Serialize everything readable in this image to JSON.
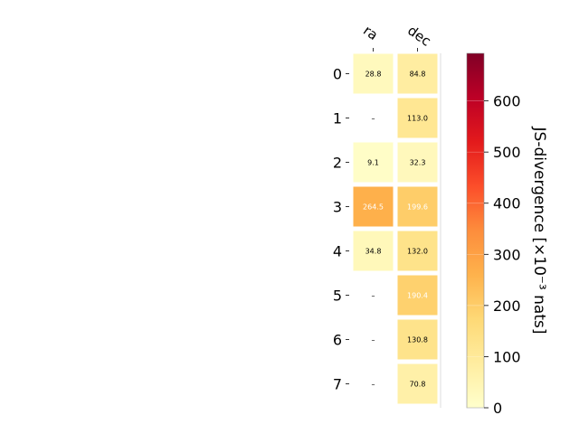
{
  "chart_data": {
    "type": "heatmap",
    "columns": [
      "ra",
      "dec"
    ],
    "rows": [
      "0",
      "1",
      "2",
      "3",
      "4",
      "5",
      "6",
      "7"
    ],
    "values": [
      [
        28.8,
        84.8
      ],
      [
        null,
        113.0
      ],
      [
        9.1,
        32.3
      ],
      [
        264.5,
        199.6
      ],
      [
        34.8,
        132.0
      ],
      [
        null,
        190.4
      ],
      [
        null,
        130.8
      ],
      [
        null,
        70.8
      ]
    ],
    "cell_labels": [
      [
        "28.8",
        "84.8"
      ],
      [
        "–",
        "113.0"
      ],
      [
        "9.1",
        "32.3"
      ],
      [
        "264.5",
        "199.6"
      ],
      [
        "34.8",
        "132.0"
      ],
      [
        "–",
        "190.4"
      ],
      [
        "–",
        "130.8"
      ],
      [
        "–",
        "70.8"
      ]
    ],
    "colorbar": {
      "label": "JS-divergence [×10⁻³ nats]",
      "range": [
        0,
        693
      ],
      "ticks": [
        0,
        100,
        200,
        300,
        400,
        500,
        600
      ],
      "colormap": "YlOrRd"
    },
    "grid": false
  }
}
